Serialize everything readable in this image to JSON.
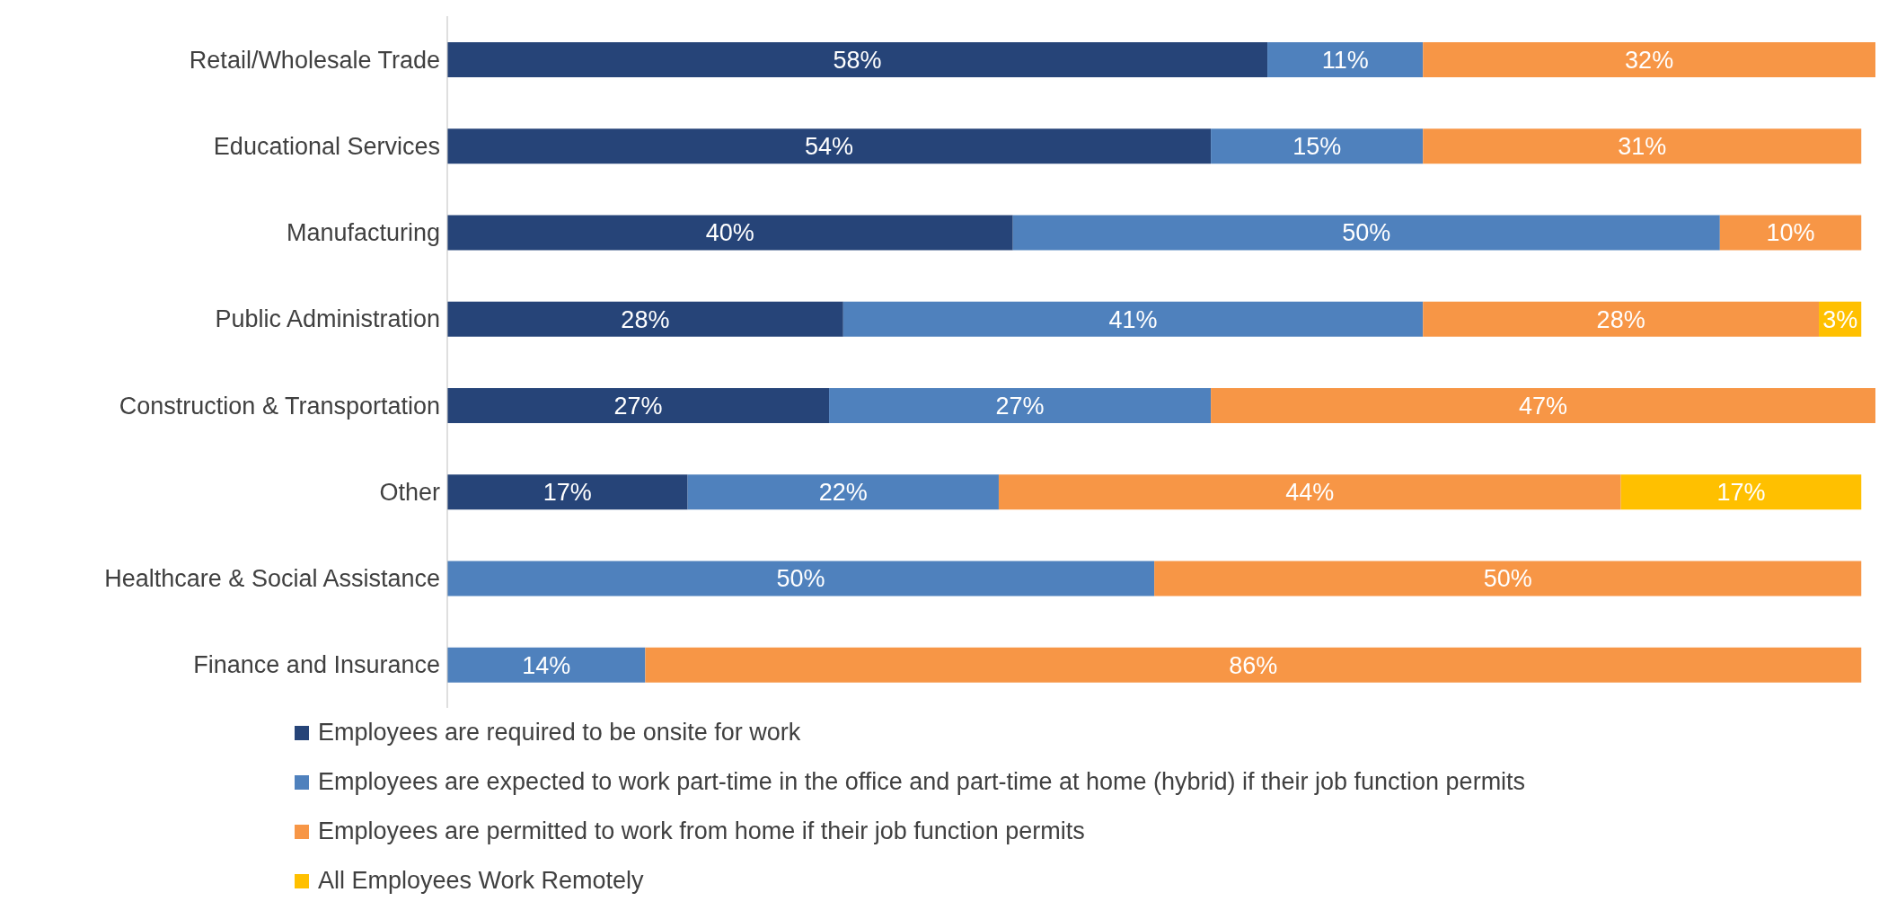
{
  "chart_data": {
    "type": "bar",
    "orientation": "horizontal",
    "stacked": true,
    "legend": "bottom",
    "categories": [
      "Retail/Wholesale Trade",
      "Educational Services",
      "Manufacturing",
      "Public Administration",
      "Construction & Transportation",
      "Other",
      "Healthcare & Social Assistance",
      "Finance and Insurance"
    ],
    "series": [
      {
        "name": "Employees are required to be onsite for work",
        "color": "#264478",
        "values": [
          58,
          54,
          40,
          28,
          27,
          17,
          null,
          null
        ],
        "value_labels": [
          "58%",
          "54%",
          "40%",
          "28%",
          "27%",
          "17%",
          null,
          null
        ]
      },
      {
        "name": "Employees are expected to work part-time in the office and part-time at home (hybrid) if their job function permits",
        "color": "#4f81bd",
        "values": [
          11,
          15,
          50,
          41,
          27,
          22,
          50,
          14
        ],
        "value_labels": [
          "11%",
          "15%",
          "50%",
          "41%",
          "27%",
          "22%",
          "50%",
          "14%"
        ]
      },
      {
        "name": "Employees are permitted to work from home if their job function permits",
        "color": "#f79646",
        "values": [
          32,
          31,
          10,
          28,
          47,
          44,
          50,
          86
        ],
        "value_labels": [
          "32%",
          "31%",
          "10%",
          "28%",
          "47%",
          "44%",
          "50%",
          "86%"
        ]
      },
      {
        "name": "All Employees Work Remotely",
        "color": "#ffc000",
        "values": [
          null,
          null,
          null,
          3,
          null,
          17,
          null,
          null
        ],
        "value_labels": [
          null,
          null,
          null,
          "3%",
          null,
          "17%",
          null,
          null
        ]
      }
    ]
  }
}
